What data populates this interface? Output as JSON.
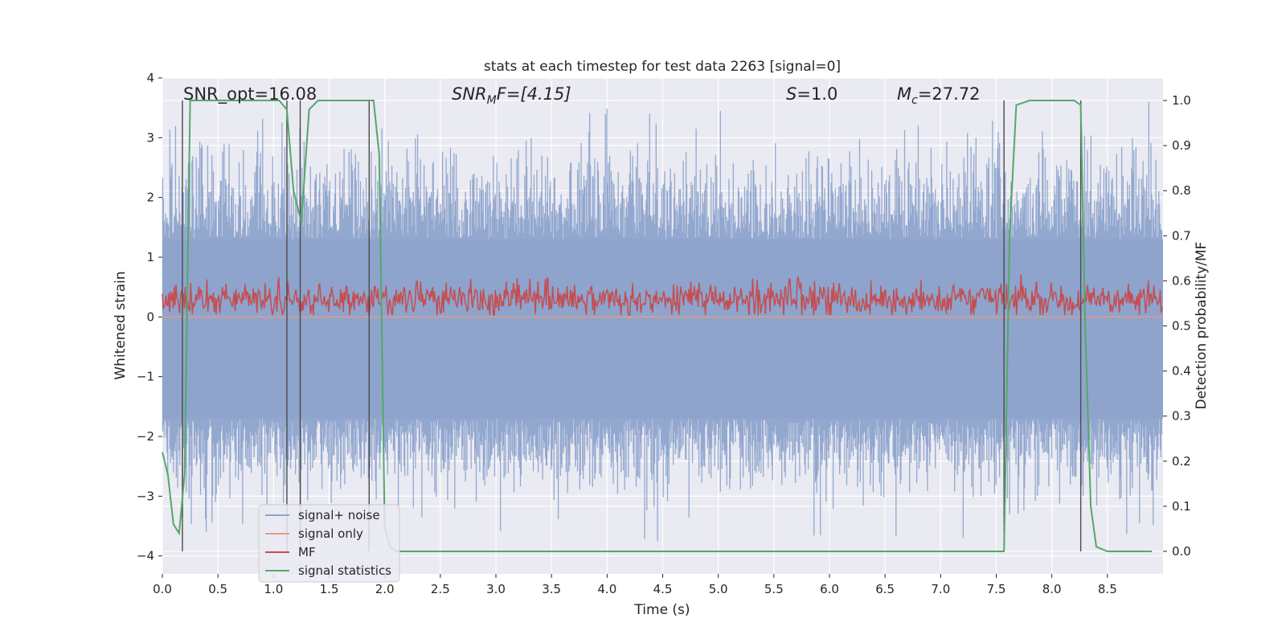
{
  "chart_data": {
    "type": "line",
    "title": "stats at each timestep for test data 2263 [signal=0]",
    "xlabel": "Time (s)",
    "ylabel": "Whitened strain",
    "ylabel_right": "Detection probability/MF",
    "xlim": [
      0.0,
      9.0
    ],
    "ylim": [
      -4.3,
      4.0
    ],
    "ylim_right": [
      -0.05,
      1.05
    ],
    "x_ticks": [
      0.0,
      0.5,
      1.0,
      1.5,
      2.0,
      2.5,
      3.0,
      3.5,
      4.0,
      4.5,
      5.0,
      5.5,
      6.0,
      6.5,
      7.0,
      7.5,
      8.0,
      8.5
    ],
    "x_tick_labels": [
      "0.0",
      "0.5",
      "1.0",
      "1.5",
      "2.0",
      "2.5",
      "3.0",
      "3.5",
      "4.0",
      "4.5",
      "5.0",
      "5.5",
      "6.0",
      "6.5",
      "7.0",
      "7.5",
      "8.0",
      "8.5"
    ],
    "y_ticks": [
      -4,
      -3,
      -2,
      -1,
      0,
      1,
      2,
      3,
      4
    ],
    "y_tick_labels": [
      "−4",
      "−3",
      "−2",
      "−1",
      "0",
      "1",
      "2",
      "3",
      "4"
    ],
    "y_right_ticks": [
      0.0,
      0.1,
      0.2,
      0.3,
      0.4,
      0.5,
      0.6,
      0.7,
      0.8,
      0.9,
      1.0
    ],
    "y_right_tick_labels": [
      "0.0",
      "0.1",
      "0.2",
      "0.3",
      "0.4",
      "0.5",
      "0.6",
      "0.7",
      "0.8",
      "0.9",
      "1.0"
    ],
    "grid": true,
    "legend_position": "lower-left",
    "annotations": {
      "snr_opt": "SNR_opt=16.08",
      "snr_mf_sym": "SNR",
      "snr_mf_sub": "M",
      "snr_mf_rest": "F=[4.15]",
      "s_sym": "S",
      "s_rest": "=1.0",
      "mc_sym": "M",
      "mc_sub": "c",
      "mc_rest": "=27.72"
    },
    "series": [
      {
        "name": "signal+ noise",
        "color": "#8ea4cc",
        "envelope_upper_typical": 1.3,
        "envelope_lower_typical": -1.7,
        "max": 3.6,
        "min": -4.0
      },
      {
        "name": "signal only",
        "color": "#e59b84",
        "value": 0.0
      },
      {
        "name": "MF",
        "color": "#c44e52",
        "mean": 0.3,
        "spread": 0.45
      },
      {
        "name": "signal statistics",
        "color": "#55a868",
        "x": [
          0.0,
          0.05,
          0.1,
          0.15,
          0.2,
          0.25,
          0.3,
          0.6,
          0.9,
          1.05,
          1.12,
          1.18,
          1.25,
          1.32,
          1.4,
          1.55,
          1.7,
          1.85,
          1.9,
          1.95,
          2.0,
          2.05,
          2.1,
          7.5,
          7.57,
          7.62,
          7.68,
          7.8,
          8.1,
          8.2,
          8.26,
          8.3,
          8.35,
          8.4,
          8.5,
          8.9
        ],
        "y": [
          0.22,
          0.17,
          0.06,
          0.04,
          0.17,
          1.0,
          1.0,
          1.0,
          1.0,
          1.0,
          0.98,
          0.8,
          0.73,
          0.98,
          1.0,
          1.0,
          1.0,
          1.0,
          1.0,
          0.88,
          0.05,
          0.01,
          0.0,
          0.0,
          0.0,
          0.7,
          0.99,
          1.0,
          1.0,
          1.0,
          0.99,
          0.5,
          0.1,
          0.01,
          0.0,
          0.0
        ]
      }
    ],
    "vlines": [
      0.18,
      1.12,
      1.24,
      1.86,
      7.57,
      8.26
    ]
  }
}
